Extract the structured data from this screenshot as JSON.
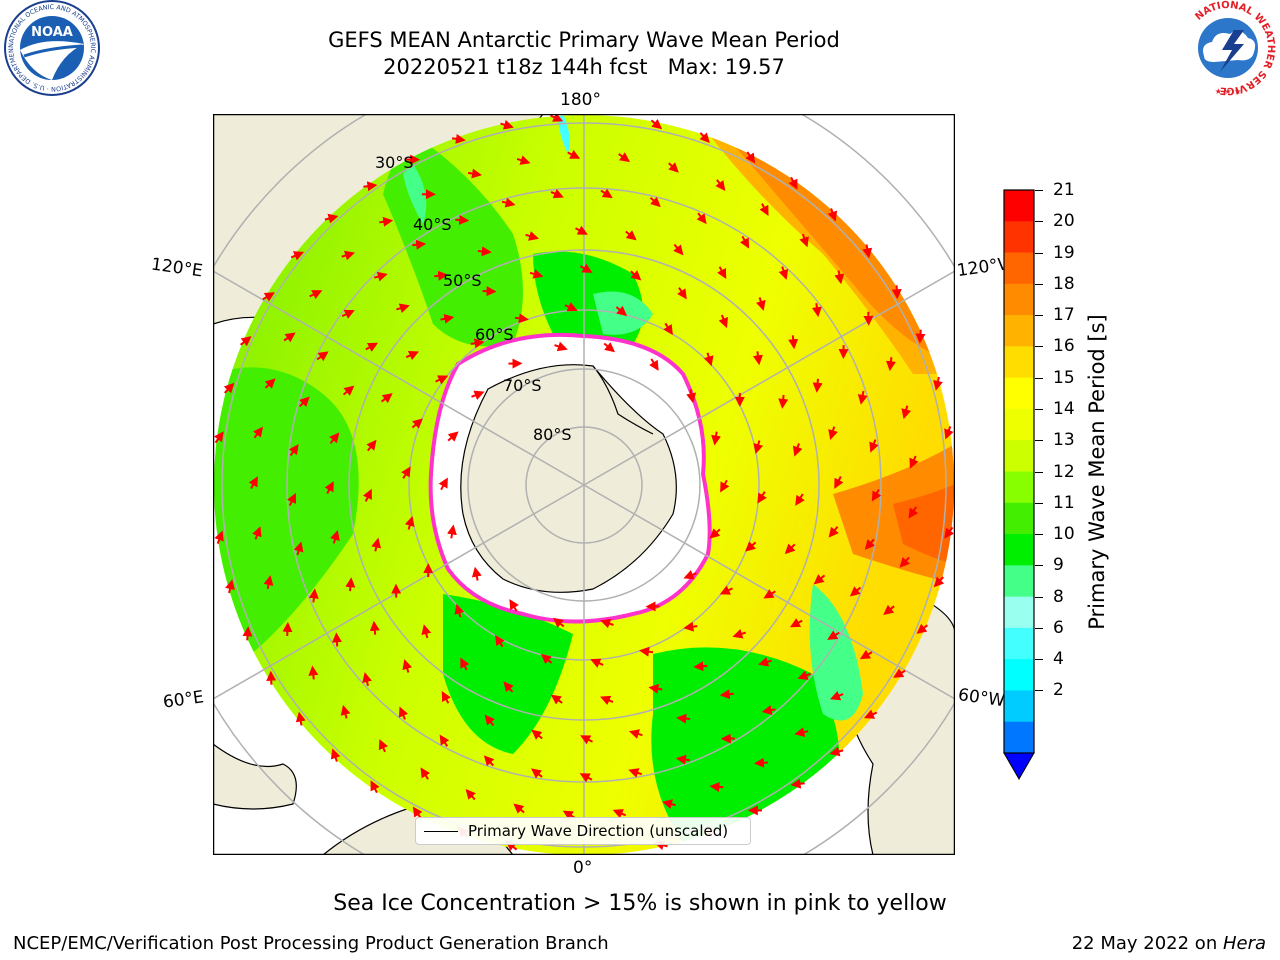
{
  "header": {
    "title_line1": "GEFS MEAN Antarctic Primary Wave Mean Period",
    "title_line2": "20220521 t18z 144h fcst   Max: 19.57"
  },
  "logos": {
    "noaa_text": "NOAA",
    "noaa_ring_text": "NATIONAL OCEANIC AND ATMOSPHERIC ADMINISTRATION · U.S. DEPARTMENT OF COMMERCE",
    "nws_ring_text": "NATIONAL WEATHER SERVICE"
  },
  "map": {
    "longitude_labels": {
      "top": "180°",
      "bottom": "0°",
      "left_upper": "120°E",
      "left_lower": "60°E",
      "right_upper": "120°W",
      "right_lower": "60°W"
    },
    "latitude_labels": [
      "30°S",
      "40°S",
      "50°S",
      "60°S",
      "70°S",
      "80°S"
    ],
    "legend_label": "Primary Wave Direction (unscaled)",
    "colors": {
      "land": "#efedd9",
      "ice": "#ffffff",
      "arrow": "#ff0000",
      "grid": "#b0b0b0"
    }
  },
  "colorbar": {
    "label": "Primary Wave Mean Period [s]",
    "ticks": [
      "21",
      "20",
      "19",
      "18",
      "17",
      "16",
      "15",
      "14",
      "13",
      "12",
      "11",
      "10",
      "9",
      "8",
      "6",
      "4",
      "2"
    ],
    "colors_top_to_bottom": [
      "#ff0000",
      "#ff3300",
      "#ff6600",
      "#ff8c00",
      "#ffb300",
      "#ffdd00",
      "#ffff00",
      "#eeff00",
      "#ccff00",
      "#88ff00",
      "#44ee00",
      "#00ee00",
      "#44ff88",
      "#99ffee",
      "#44ffff",
      "#00ffff",
      "#00ccff",
      "#0077ff"
    ],
    "extend_color": "#0000ff"
  },
  "footer": {
    "note": "Sea Ice Concentration > 15% is shown in pink to yellow",
    "credit": "NCEP/EMC/Verification Post Processing Product Generation Branch",
    "date": "22 May 2022 on ",
    "host": "Hera"
  }
}
